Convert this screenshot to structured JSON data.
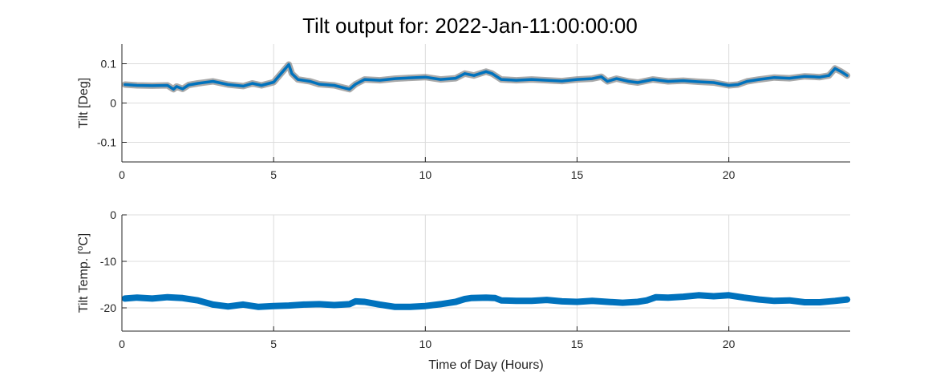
{
  "title": "Tilt output for: 2022-Jan-11:00:00:00",
  "colors": {
    "series": "#0072bd",
    "band": "#8c8c8c",
    "grid": "#dcdcdc",
    "axis": "#262626"
  },
  "chart_data": [
    {
      "type": "line",
      "title": "Tilt output for: 2022-Jan-11:00:00:00",
      "xlabel": "",
      "ylabel": "Tilt [Deg]",
      "xlim": [
        0,
        24
      ],
      "ylim": [
        -0.15,
        0.15
      ],
      "xticks": [
        0,
        5,
        10,
        15,
        20
      ],
      "yticks": [
        -0.1,
        0,
        0.1
      ],
      "xtick_labels": [
        "0",
        "5",
        "10",
        "15",
        "20"
      ],
      "ytick_labels": [
        "-0.1",
        "0",
        "0.1"
      ],
      "grid": true,
      "x": [
        0.1,
        0.5,
        1.0,
        1.5,
        1.7,
        1.8,
        2.0,
        2.2,
        2.5,
        3.0,
        3.5,
        4.0,
        4.3,
        4.6,
        5.0,
        5.3,
        5.5,
        5.6,
        5.8,
        6.2,
        6.5,
        7.0,
        7.3,
        7.5,
        7.7,
        8.0,
        8.5,
        9.0,
        9.5,
        10.0,
        10.5,
        11.0,
        11.3,
        11.6,
        12.0,
        12.2,
        12.5,
        13.0,
        13.5,
        14.0,
        14.5,
        15.0,
        15.5,
        15.8,
        16.0,
        16.3,
        16.7,
        17.0,
        17.5,
        18.0,
        18.5,
        19.0,
        19.5,
        20.0,
        20.3,
        20.6,
        21.0,
        21.5,
        22.0,
        22.5,
        23.0,
        23.3,
        23.5,
        23.7,
        23.9
      ],
      "series": [
        {
          "values": [
            0.047,
            0.045,
            0.044,
            0.045,
            0.035,
            0.042,
            0.036,
            0.046,
            0.05,
            0.055,
            0.047,
            0.043,
            0.05,
            0.045,
            0.053,
            0.08,
            0.098,
            0.075,
            0.06,
            0.055,
            0.048,
            0.045,
            0.039,
            0.035,
            0.048,
            0.06,
            0.058,
            0.062,
            0.064,
            0.066,
            0.06,
            0.063,
            0.075,
            0.07,
            0.08,
            0.075,
            0.06,
            0.058,
            0.06,
            0.058,
            0.056,
            0.06,
            0.062,
            0.067,
            0.055,
            0.062,
            0.055,
            0.052,
            0.06,
            0.055,
            0.057,
            0.054,
            0.052,
            0.045,
            0.047,
            0.055,
            0.06,
            0.065,
            0.063,
            0.068,
            0.066,
            0.07,
            0.088,
            0.08,
            0.07
          ]
        }
      ]
    },
    {
      "type": "line",
      "title": "",
      "xlabel": "Time of Day (Hours)",
      "ylabel": "Tilt Temp. [oC]",
      "ylabel_parts": {
        "prefix": "Tilt Temp. [",
        "sup": "o",
        "suffix": "C]"
      },
      "xlim": [
        0,
        24
      ],
      "ylim": [
        -25,
        0
      ],
      "xticks": [
        0,
        5,
        10,
        15,
        20
      ],
      "yticks": [
        -20,
        -10,
        0
      ],
      "xtick_labels": [
        "0",
        "5",
        "10",
        "15",
        "20"
      ],
      "ytick_labels": [
        "-20",
        "-10",
        "0"
      ],
      "grid": true,
      "x": [
        0.1,
        0.5,
        1.0,
        1.5,
        2.0,
        2.5,
        3.0,
        3.5,
        4.0,
        4.5,
        5.0,
        5.5,
        6.0,
        6.5,
        7.0,
        7.5,
        7.7,
        8.0,
        8.5,
        9.0,
        9.5,
        10.0,
        10.5,
        11.0,
        11.3,
        11.5,
        12.0,
        12.3,
        12.5,
        13.0,
        13.5,
        14.0,
        14.5,
        15.0,
        15.5,
        16.0,
        16.5,
        17.0,
        17.3,
        17.6,
        18.0,
        18.5,
        19.0,
        19.5,
        20.0,
        20.5,
        21.0,
        21.5,
        22.0,
        22.5,
        23.0,
        23.5,
        23.9
      ],
      "series": [
        {
          "values": [
            -18.0,
            -17.8,
            -18.0,
            -17.7,
            -17.9,
            -18.4,
            -19.3,
            -19.7,
            -19.3,
            -19.8,
            -19.6,
            -19.5,
            -19.3,
            -19.2,
            -19.4,
            -19.2,
            -18.6,
            -18.7,
            -19.3,
            -19.8,
            -19.8,
            -19.6,
            -19.2,
            -18.7,
            -18.1,
            -17.9,
            -17.8,
            -17.9,
            -18.4,
            -18.5,
            -18.5,
            -18.3,
            -18.6,
            -18.7,
            -18.5,
            -18.7,
            -18.9,
            -18.7,
            -18.4,
            -17.7,
            -17.8,
            -17.6,
            -17.3,
            -17.5,
            -17.3,
            -17.8,
            -18.2,
            -18.5,
            -18.4,
            -18.8,
            -18.8,
            -18.5,
            -18.2
          ]
        }
      ]
    }
  ]
}
